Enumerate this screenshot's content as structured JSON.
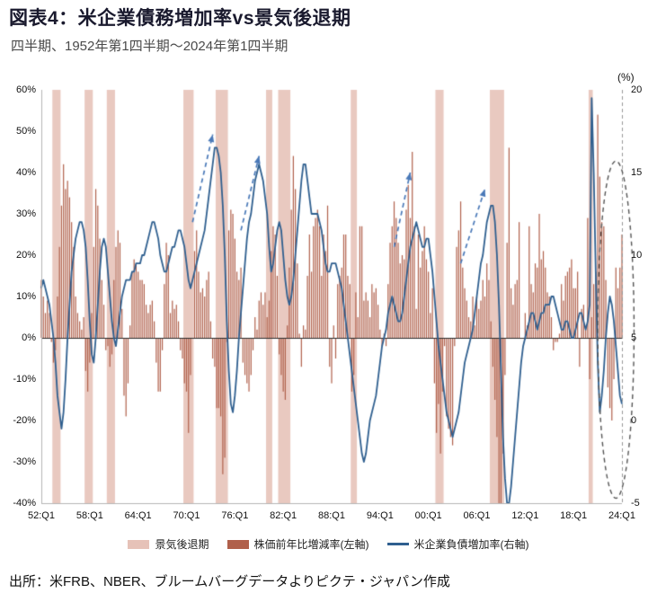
{
  "chart_data": {
    "type": "combo",
    "title": "図表4：米企業債務増加率vs景気後退期",
    "subtitle": "四半期、1952年第1四半期～2024年第1四半期",
    "source": "出所：米FRB、NBER、ブルームバーグデータよりピクテ・ジャパン作成",
    "frequency": "quarterly",
    "x_start": "1952Q1",
    "x_end": "2024Q1",
    "x_ticks": [
      "52:Q1",
      "58:Q1",
      "64:Q1",
      "70:Q1",
      "76:Q1",
      "82:Q1",
      "88:Q1",
      "94:Q1",
      "00:Q1",
      "06:Q1",
      "12:Q1",
      "18:Q1",
      "24:Q1"
    ],
    "left_axis": {
      "name": "株価前年比増減率(左軸)",
      "unit": "%",
      "min": -40,
      "max": 60,
      "ticks": [
        "60%",
        "50%",
        "40%",
        "30%",
        "20%",
        "10%",
        "0%",
        "-10%",
        "-20%",
        "-30%",
        "-40%"
      ]
    },
    "right_axis": {
      "name": "米企業負債増加率(右軸)",
      "unit": "(%)",
      "min": -5,
      "max": 20,
      "ticks": [
        "20",
        "15",
        "10",
        "5",
        "0",
        "-5"
      ]
    },
    "grid": "off",
    "legend_position": "bottom",
    "recessions": [
      [
        "1953Q3",
        "1954Q2"
      ],
      [
        "1957Q3",
        "1958Q2"
      ],
      [
        "1960Q2",
        "1961Q1"
      ],
      [
        "1969Q4",
        "1970Q4"
      ],
      [
        "1973Q4",
        "1975Q1"
      ],
      [
        "1980Q1",
        "1980Q3"
      ],
      [
        "1981Q3",
        "1982Q4"
      ],
      [
        "1990Q3",
        "1991Q1"
      ],
      [
        "2001Q1",
        "2001Q4"
      ],
      [
        "2007Q4",
        "2009Q2"
      ],
      [
        "2020Q1",
        "2020Q2"
      ]
    ],
    "legend": [
      {
        "label": "景気後退期",
        "color": "#e6c2b8",
        "marker": "band"
      },
      {
        "label": "株価前年比増減率(左軸)",
        "color": "#b0604b",
        "marker": "bar"
      },
      {
        "label": "米企業負債増加率(右軸)",
        "color": "#2f5f8f",
        "marker": "line"
      }
    ],
    "series": [
      {
        "name": "景気後退期",
        "type": "band",
        "color": "#e9c9c0"
      },
      {
        "name": "株価前年比増減率(左軸)",
        "type": "bar",
        "axis": "left",
        "unit": "%",
        "color": "#b0604b",
        "values_by_year": {
          "1952": [
            14,
            10,
            6,
            9
          ],
          "1953": [
            6,
            -1,
            -6,
            -3
          ],
          "1954": [
            10,
            22,
            32,
            42
          ],
          "1955": [
            36,
            38,
            34,
            28
          ],
          "1956": [
            22,
            10,
            6,
            4
          ],
          "1957": [
            2,
            5,
            -8,
            -13
          ],
          "1958": [
            -6,
            6,
            22,
            36
          ],
          "1959": [
            32,
            24,
            14,
            8
          ],
          "1960": [
            -3,
            -2,
            -7,
            -4
          ],
          "1961": [
            14,
            22,
            26,
            23
          ],
          "1962": [
            7,
            -14,
            -19,
            -11
          ],
          "1963": [
            3,
            16,
            19,
            18
          ],
          "1964": [
            16,
            14,
            14,
            13
          ],
          "1965": [
            8,
            6,
            8,
            9
          ],
          "1966": [
            4,
            -6,
            -13,
            -13
          ],
          "1967": [
            -3,
            13,
            23,
            20
          ],
          "1968": [
            6,
            9,
            7,
            8
          ],
          "1969": [
            4,
            -3,
            -5,
            -11
          ],
          "1970": [
            -13,
            -23,
            -9,
            0
          ],
          "1971": [
            21,
            26,
            16,
            11
          ],
          "1972": [
            12,
            10,
            14,
            16
          ],
          "1973": [
            4,
            -5,
            -7,
            -17
          ],
          "1974": [
            -17,
            -19,
            -33,
            -29
          ],
          "1975": [
            -1,
            26,
            31,
            30
          ],
          "1976": [
            24,
            16,
            14,
            17
          ],
          "1977": [
            -6,
            -9,
            -11,
            -13
          ],
          "1978": [
            -9,
            -3,
            5,
            2
          ],
          "1979": [
            9,
            11,
            8,
            11
          ],
          "1980": [
            5,
            9,
            21,
            27
          ],
          "1981": [
            25,
            15,
            -4,
            -9
          ],
          "1982": [
            -13,
            -15,
            3,
            17
          ],
          "1983": [
            31,
            44,
            36,
            18
          ],
          "1984": [
            1,
            -7,
            3,
            2
          ],
          "1985": [
            15,
            25,
            16,
            27
          ],
          "1986": [
            29,
            31,
            27,
            15
          ],
          "1987": [
            25,
            21,
            32,
            -7
          ],
          "1988": [
            -11,
            3,
            -5,
            13
          ],
          "1989": [
            15,
            17,
            25,
            25
          ],
          "1990": [
            15,
            13,
            -13,
            -9
          ],
          "1991": [
            11,
            5,
            27,
            27
          ],
          "1992": [
            9,
            11,
            9,
            5
          ],
          "1993": [
            13,
            11,
            12,
            8
          ],
          "1994": [
            2,
            -2,
            1,
            -2
          ],
          "1995": [
            13,
            23,
            27,
            33
          ],
          "1996": [
            29,
            23,
            18,
            20
          ],
          "1997": [
            19,
            31,
            37,
            29
          ],
          "1998": [
            45,
            27,
            7,
            25
          ],
          "1999": [
            17,
            21,
            27,
            19
          ],
          "2000": [
            16,
            6,
            12,
            -11
          ],
          "2001": [
            -23,
            -16,
            -28,
            -13
          ],
          "2002": [
            -2,
            -19,
            -22,
            -24
          ],
          "2003": [
            -26,
            -2,
            22,
            26
          ],
          "2004": [
            33,
            17,
            12,
            9
          ],
          "2005": [
            5,
            4,
            10,
            3
          ],
          "2006": [
            10,
            7,
            9,
            14
          ],
          "2007": [
            10,
            18,
            14,
            4
          ],
          "2008": [
            -7,
            -15,
            -24,
            -40
          ],
          "2009": [
            -40,
            -28,
            -9,
            23
          ],
          "2010": [
            46,
            12,
            8,
            13
          ],
          "2011": [
            14,
            28,
            0,
            0
          ],
          "2012": [
            6,
            3,
            27,
            13
          ],
          "2013": [
            11,
            18,
            17,
            30
          ],
          "2014": [
            19,
            21,
            17,
            11
          ],
          "2015": [
            10,
            5,
            -3,
            -1
          ],
          "2016": [
            -1,
            1,
            13,
            9
          ],
          "2017": [
            15,
            16,
            17,
            19
          ],
          "2018": [
            12,
            12,
            16,
            -7
          ],
          "2019": [
            7,
            8,
            2,
            29
          ],
          "2020": [
            -10,
            5,
            13,
            16
          ],
          "2021": [
            54,
            39,
            28,
            27
          ],
          "2022": [
            14,
            -12,
            -17,
            -20
          ],
          "2023": [
            -10,
            17,
            12,
            17
          ],
          "2024": [
            25
          ]
        }
      },
      {
        "name": "米企業負債増加率(右軸)",
        "type": "line",
        "axis": "right",
        "unit": "%",
        "color": "#2f5f8f",
        "values_by_year": {
          "1952": [
            8,
            8.5,
            8,
            7.5
          ],
          "1953": [
            7,
            6,
            5,
            3.5
          ],
          "1954": [
            1.5,
            0.5,
            -0.5,
            0.5
          ],
          "1955": [
            2.5,
            5,
            7,
            9
          ],
          "1956": [
            10,
            11,
            11.5,
            12
          ],
          "1957": [
            12,
            11.5,
            10.5,
            8.5
          ],
          "1958": [
            6,
            4,
            3.5,
            5
          ],
          "1959": [
            7,
            9,
            10.5,
            11
          ],
          "1960": [
            10.5,
            9,
            7.5,
            6
          ],
          "1961": [
            5,
            4.5,
            5.5,
            6.5
          ],
          "1962": [
            7.5,
            8,
            8.5,
            8.5
          ],
          "1963": [
            8.5,
            9,
            9,
            9.5
          ],
          "1964": [
            9.5,
            9.5,
            10,
            10
          ],
          "1965": [
            10.5,
            11,
            11.5,
            12
          ],
          "1966": [
            12,
            11.5,
            11,
            10
          ],
          "1967": [
            9.5,
            9,
            9,
            9.5
          ],
          "1968": [
            10,
            10.5,
            10.5,
            11
          ],
          "1969": [
            11.5,
            11.5,
            11,
            10.5
          ],
          "1970": [
            9.5,
            8.5,
            8,
            8.5
          ],
          "1971": [
            9,
            9.5,
            10,
            10.5
          ],
          "1972": [
            11,
            11.5,
            12.5,
            13.5
          ],
          "1973": [
            14.5,
            15.5,
            16.5,
            16.5
          ],
          "1974": [
            16,
            15,
            13,
            10
          ],
          "1975": [
            6,
            3,
            1,
            0.5
          ],
          "1976": [
            1.5,
            3,
            5,
            6.5
          ],
          "1977": [
            8,
            9.5,
            11,
            12
          ],
          "1978": [
            12.5,
            13.5,
            14.5,
            15
          ],
          "1979": [
            15.5,
            15,
            14.5,
            13.5
          ],
          "1980": [
            12.5,
            10.5,
            9,
            9.5
          ],
          "1981": [
            10.5,
            11.5,
            12,
            11.5
          ],
          "1982": [
            10,
            8.5,
            7.5,
            7
          ],
          "1983": [
            7.5,
            8.5,
            10,
            11.5
          ],
          "1984": [
            13,
            14.5,
            15.5,
            15.5
          ],
          "1985": [
            14.5,
            13.5,
            12.5,
            12.5
          ],
          "1986": [
            12.5,
            12.5,
            12,
            11.5
          ],
          "1987": [
            10.5,
            9.5,
            9,
            9
          ],
          "1988": [
            9.5,
            9.5,
            9.5,
            9
          ],
          "1989": [
            8.5,
            8,
            7,
            6
          ],
          "1990": [
            5,
            4,
            3,
            2
          ],
          "1991": [
            1,
            0,
            -1,
            -2
          ],
          "1992": [
            -2.5,
            -2,
            -1,
            0
          ],
          "1993": [
            0.5,
            1,
            1.5,
            2.5
          ],
          "1994": [
            3.5,
            4.5,
            5,
            5.5
          ],
          "1995": [
            6.5,
            7,
            7.5,
            7
          ],
          "1996": [
            6.5,
            6,
            6,
            6.5
          ],
          "1997": [
            7.5,
            8.5,
            9.5,
            10.5
          ],
          "1998": [
            11,
            11.5,
            12,
            11.5
          ],
          "1999": [
            11,
            10.5,
            10.5,
            11
          ],
          "2000": [
            11,
            10,
            9,
            7.5
          ],
          "2001": [
            6,
            4.5,
            3.5,
            2.5
          ],
          "2002": [
            1.5,
            0.5,
            0,
            -0.5
          ],
          "2003": [
            -1,
            -0.5,
            0,
            0.5
          ],
          "2004": [
            1.5,
            2.5,
            3.5,
            4
          ],
          "2005": [
            4.5,
            5,
            5.5,
            6.5
          ],
          "2006": [
            7.5,
            8.5,
            9.5,
            10
          ],
          "2007": [
            11,
            12,
            12.5,
            13
          ],
          "2008": [
            13,
            12,
            10,
            7
          ],
          "2009": [
            3,
            -1,
            -3.5,
            -5
          ],
          "2010": [
            -5,
            -4,
            -2.5,
            -1
          ],
          "2011": [
            0.5,
            2,
            3.5,
            4.5
          ],
          "2012": [
            5,
            5.5,
            6,
            6.5
          ],
          "2013": [
            6.5,
            6,
            5.5,
            6
          ],
          "2014": [
            6.5,
            6.5,
            7,
            7
          ],
          "2015": [
            7,
            7.5,
            7.5,
            7
          ],
          "2016": [
            6.5,
            6,
            5.5,
            5.5
          ],
          "2017": [
            6,
            6,
            5.5,
            5
          ],
          "2018": [
            5,
            5.5,
            6,
            6.5
          ],
          "2019": [
            6.5,
            6,
            5.5,
            6
          ],
          "2020": [
            7,
            19.5,
            15,
            9
          ],
          "2021": [
            3.5,
            0.5,
            1.5,
            3
          ],
          "2022": [
            5,
            6.5,
            7.5,
            7
          ],
          "2023": [
            6,
            4.5,
            3,
            1.5
          ],
          "2024": [
            1
          ]
        }
      }
    ],
    "annotations": {
      "arrow_color": "#4a79b8",
      "arrows": [
        {
          "from_t": "1970Q4",
          "from_r": 12,
          "to_t": "1973Q2",
          "to_r": 17.3
        },
        {
          "from_t": "1976Q4",
          "from_r": 11.5,
          "to_t": "1979Q1",
          "to_r": 16
        },
        {
          "from_t": "1995Q4",
          "from_r": 10.5,
          "to_t": "1997Q4",
          "to_r": 15
        },
        {
          "from_t": "2004Q1",
          "from_r": 9.5,
          "to_t": "2007Q1",
          "to_r": 14
        }
      ],
      "ellipse": {
        "center_t": "2023Q2",
        "center_r": 5.5,
        "rx_quarters": 9,
        "ry_r": 10.2,
        "color": "#555555"
      }
    }
  }
}
